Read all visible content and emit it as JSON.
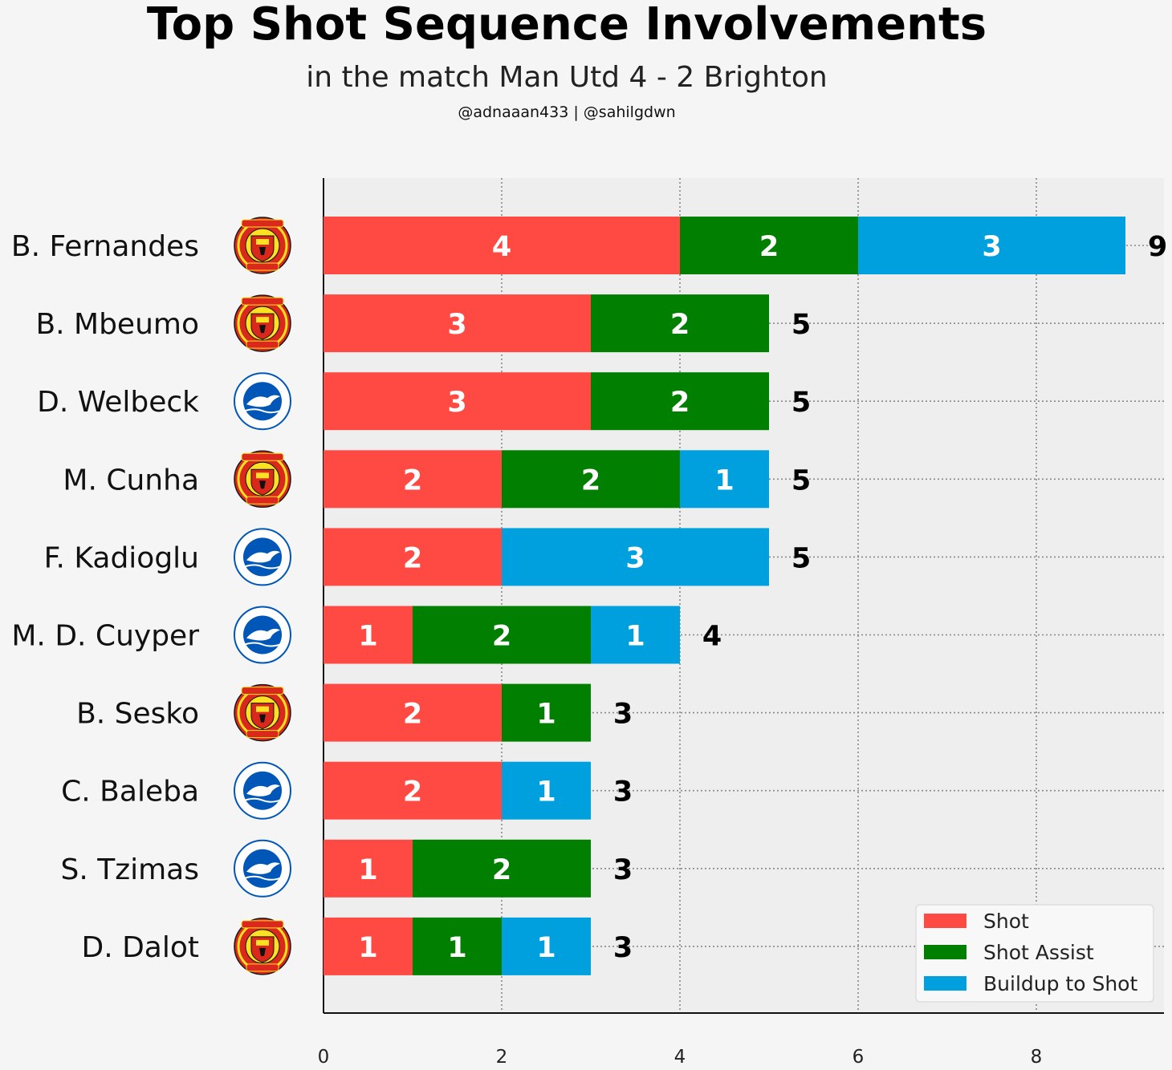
{
  "header": {
    "title": "Top Shot Sequence Involvements",
    "subtitle": "in the match Man Utd 4 - 2 Brighton",
    "credits": "@adnaaan433  | @sahilgdwn"
  },
  "colors": {
    "shot": "#ff4a44",
    "shot_assist": "#007f00",
    "buildup": "#00a0de",
    "plot_bg": "#eeeeee",
    "page_bg": "#f5f5f5",
    "man_utd_red": "#da291c",
    "man_utd_gold": "#fbe122",
    "brighton_blue": "#0057b8"
  },
  "chart_data": {
    "type": "bar",
    "orientation": "horizontal",
    "stacked": true,
    "categories": [
      "B. Fernandes",
      "B. Mbeumo",
      "D. Welbeck",
      "M. Cunha",
      "F. Kadioglu",
      "M. D. Cuyper",
      "B. Sesko",
      "C. Baleba",
      "S. Tzimas",
      "D. Dalot"
    ],
    "teams": [
      "man-utd",
      "man-utd",
      "brighton",
      "man-utd",
      "brighton",
      "brighton",
      "man-utd",
      "brighton",
      "brighton",
      "man-utd"
    ],
    "series": [
      {
        "name": "Shot",
        "values": [
          4,
          3,
          3,
          2,
          2,
          1,
          2,
          2,
          1,
          1
        ]
      },
      {
        "name": "Shot Assist",
        "values": [
          2,
          2,
          2,
          2,
          0,
          2,
          1,
          0,
          2,
          1
        ]
      },
      {
        "name": "Buildup to Shot",
        "values": [
          3,
          0,
          0,
          1,
          3,
          1,
          0,
          1,
          0,
          1
        ]
      }
    ],
    "totals": [
      9,
      5,
      5,
      5,
      5,
      4,
      3,
      3,
      3,
      3
    ],
    "x_ticks": [
      0,
      2,
      4,
      6,
      8
    ],
    "xlim": [
      0,
      9.45
    ],
    "grid": true,
    "legend_position": "lower-right"
  }
}
